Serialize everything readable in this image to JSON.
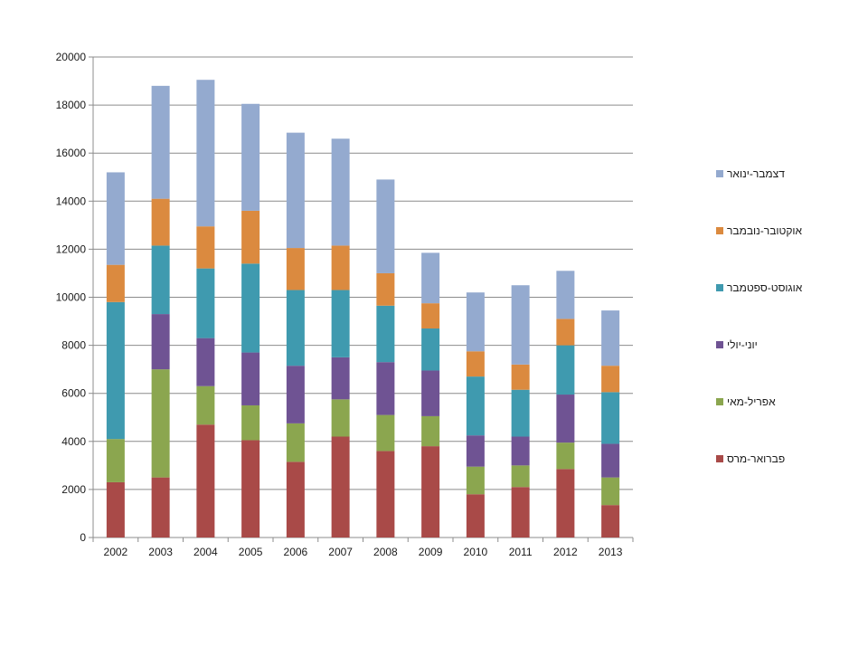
{
  "chart_data": {
    "type": "bar",
    "stacked": true,
    "categories": [
      "2002",
      "2003",
      "2004",
      "2005",
      "2006",
      "2007",
      "2008",
      "2009",
      "2010",
      "2011",
      "2012",
      "2013"
    ],
    "ylim": [
      0,
      20000
    ],
    "yticks": [
      0,
      2000,
      4000,
      6000,
      8000,
      10000,
      12000,
      14000,
      16000,
      18000,
      20000
    ],
    "grid": true,
    "legend_position": "right",
    "series": [
      {
        "name": "פברואר-מרס",
        "color": "#A94A48",
        "values": [
          2300,
          2500,
          4700,
          4050,
          3150,
          4200,
          3600,
          3800,
          1800,
          2100,
          2850,
          1350
        ]
      },
      {
        "name": "אפריל-מאי",
        "color": "#8BA64F",
        "values": [
          1800,
          4500,
          1600,
          1450,
          1600,
          1550,
          1500,
          1250,
          1150,
          900,
          1100,
          1150
        ]
      },
      {
        "name": "יוני-יולי",
        "color": "#6F5393",
        "values": [
          0,
          2300,
          2000,
          2200,
          2400,
          1750,
          2200,
          1900,
          1300,
          1200,
          2000,
          1400
        ]
      },
      {
        "name": "אוגוסט-ספטמבר",
        "color": "#3F9AAF",
        "values": [
          5700,
          2850,
          2900,
          3700,
          3150,
          2800,
          2350,
          1750,
          2450,
          1950,
          2050,
          2150
        ]
      },
      {
        "name": "אוקטובר-נובמבר",
        "color": "#DB8A3F",
        "values": [
          1550,
          1950,
          1750,
          2200,
          1750,
          1850,
          1350,
          1050,
          1050,
          1050,
          1100,
          1100
        ]
      },
      {
        "name": "דצמבר-ינואר",
        "color": "#94AACF",
        "values": [
          3850,
          4700,
          6100,
          4450,
          4800,
          4450,
          3900,
          2100,
          2450,
          3300,
          2000,
          2300
        ]
      }
    ]
  }
}
